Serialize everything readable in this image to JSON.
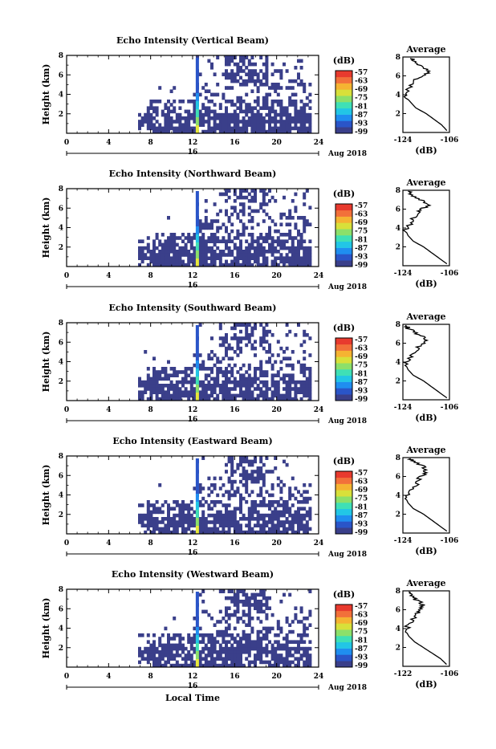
{
  "figure": {
    "x_axis_title": "Local Time",
    "date_label": "Aug 2018",
    "day_label": "16",
    "colorbar_unit": "(dB)",
    "colorbar_ticks": [
      "-57",
      "-63",
      "-69",
      "-75",
      "-81",
      "-87",
      "-93",
      "-99"
    ],
    "colormap": [
      "#3a3f8a",
      "#2a55c8",
      "#1f8ef0",
      "#22c6e6",
      "#3fe0b6",
      "#8ce06a",
      "#d8e03a",
      "#f5b332",
      "#f2703a",
      "#e83a2e"
    ],
    "echo_color": "#3a3f8a",
    "avg_title": "Average",
    "avg_xlabel": "(dB)"
  },
  "chart_data": [
    {
      "type": "heatmap",
      "title": "Echo Intensity (Vertical Beam)",
      "ylabel": "Height (km)",
      "xlabel": "",
      "x_ticks": [
        "0",
        "4",
        "8",
        "12",
        "16",
        "20",
        "24"
      ],
      "y_ticks": [
        "2",
        "4",
        "6",
        "8"
      ],
      "xlim": [
        0,
        24
      ],
      "ylim": [
        0,
        8
      ],
      "colorbar": {
        "label": "(dB)",
        "range": [
          -99,
          -57
        ]
      },
      "profile": {
        "title": "Average",
        "xlabel": "(dB)",
        "x_ticks": [
          "-124",
          "-106"
        ],
        "xlim": [
          -124,
          -106
        ],
        "height": [
          0.2,
          0.8,
          1.4,
          2.0,
          2.6,
          3.2,
          3.8,
          4.4,
          5.0,
          5.6,
          6.0,
          6.4,
          6.8,
          7.2,
          7.6,
          7.9
        ],
        "db": [
          -107,
          -109,
          -112,
          -115,
          -119,
          -121,
          -123,
          -122,
          -121,
          -119,
          -117,
          -114,
          -115,
          -118,
          -120,
          -121
        ]
      }
    },
    {
      "type": "heatmap",
      "title": "Echo Intensity (Northward Beam)",
      "ylabel": "Height (km)",
      "xlabel": "",
      "x_ticks": [
        "0",
        "4",
        "8",
        "12",
        "16",
        "20",
        "24"
      ],
      "y_ticks": [
        "2",
        "4",
        "6",
        "8"
      ],
      "xlim": [
        0,
        24
      ],
      "ylim": [
        0,
        8
      ],
      "colorbar": {
        "label": "(dB)",
        "range": [
          -99,
          -57
        ]
      },
      "profile": {
        "title": "Average",
        "xlabel": "(dB)",
        "x_ticks": [
          "-124",
          "-106"
        ],
        "xlim": [
          -124,
          -106
        ],
        "height": [
          0.2,
          0.8,
          1.4,
          2.0,
          2.6,
          3.2,
          3.8,
          4.4,
          5.0,
          5.6,
          6.0,
          6.4,
          6.8,
          7.2,
          7.6,
          7.9
        ],
        "db": [
          -107,
          -110,
          -113,
          -116,
          -120,
          -122,
          -123,
          -121,
          -120,
          -118,
          -117,
          -114,
          -116,
          -119,
          -121,
          -122
        ]
      }
    },
    {
      "type": "heatmap",
      "title": "Echo Intensity (Southward Beam)",
      "ylabel": "Height (km)",
      "xlabel": "",
      "x_ticks": [
        "0",
        "4",
        "8",
        "12",
        "16",
        "20",
        "24"
      ],
      "y_ticks": [
        "2",
        "4",
        "6",
        "8"
      ],
      "xlim": [
        0,
        24
      ],
      "ylim": [
        0,
        8
      ],
      "colorbar": {
        "label": "(dB)",
        "range": [
          -99,
          -57
        ]
      },
      "profile": {
        "title": "Average",
        "xlabel": "(dB)",
        "x_ticks": [
          "-124",
          "-106"
        ],
        "xlim": [
          -124,
          -106
        ],
        "height": [
          0.2,
          0.8,
          1.4,
          2.0,
          2.6,
          3.2,
          3.8,
          4.4,
          5.0,
          5.6,
          6.0,
          6.4,
          6.8,
          7.2,
          7.6,
          7.9
        ],
        "db": [
          -107,
          -110,
          -113,
          -116,
          -120,
          -122,
          -123,
          -121,
          -120,
          -118,
          -116,
          -115,
          -117,
          -120,
          -122,
          -123
        ]
      }
    },
    {
      "type": "heatmap",
      "title": "Echo Intensity (Eastward Beam)",
      "ylabel": "Height (km)",
      "xlabel": "",
      "x_ticks": [
        "0",
        "4",
        "8",
        "12",
        "16",
        "20",
        "24"
      ],
      "y_ticks": [
        "2",
        "4",
        "6",
        "8"
      ],
      "xlim": [
        0,
        24
      ],
      "ylim": [
        0,
        8
      ],
      "colorbar": {
        "label": "(dB)",
        "range": [
          -99,
          -57
        ]
      },
      "profile": {
        "title": "Average",
        "xlabel": "(dB)",
        "x_ticks": [
          "-124",
          "-106"
        ],
        "xlim": [
          -124,
          -106
        ],
        "height": [
          0.2,
          0.8,
          1.4,
          2.0,
          2.6,
          3.2,
          3.8,
          4.4,
          5.0,
          5.6,
          6.0,
          6.4,
          6.8,
          7.2,
          7.6,
          7.9
        ],
        "db": [
          -107,
          -110,
          -113,
          -116,
          -120,
          -122,
          -123,
          -121,
          -119,
          -118,
          -117,
          -115,
          -115,
          -117,
          -120,
          -121
        ]
      }
    },
    {
      "type": "heatmap",
      "title": "Echo Intensity (Westward Beam)",
      "ylabel": "Height (km)",
      "xlabel": "Local Time",
      "x_ticks": [
        "0",
        "4",
        "8",
        "12",
        "16",
        "20",
        "24"
      ],
      "y_ticks": [
        "2",
        "4",
        "6",
        "8"
      ],
      "xlim": [
        0,
        24
      ],
      "ylim": [
        0,
        8
      ],
      "colorbar": {
        "label": "(dB)",
        "range": [
          -99,
          -57
        ]
      },
      "profile": {
        "title": "Average",
        "xlabel": "(dB)",
        "x_ticks": [
          "-122",
          "-106"
        ],
        "xlim": [
          -122,
          -106
        ],
        "height": [
          0.2,
          0.8,
          1.4,
          2.0,
          2.6,
          3.2,
          3.8,
          4.4,
          5.0,
          5.6,
          6.0,
          6.4,
          6.8,
          7.2,
          7.6,
          7.9
        ],
        "db": [
          -107,
          -109,
          -112,
          -115,
          -118,
          -120,
          -121,
          -120,
          -119,
          -117,
          -117,
          -115,
          -116,
          -118,
          -119,
          -120
        ]
      }
    }
  ]
}
